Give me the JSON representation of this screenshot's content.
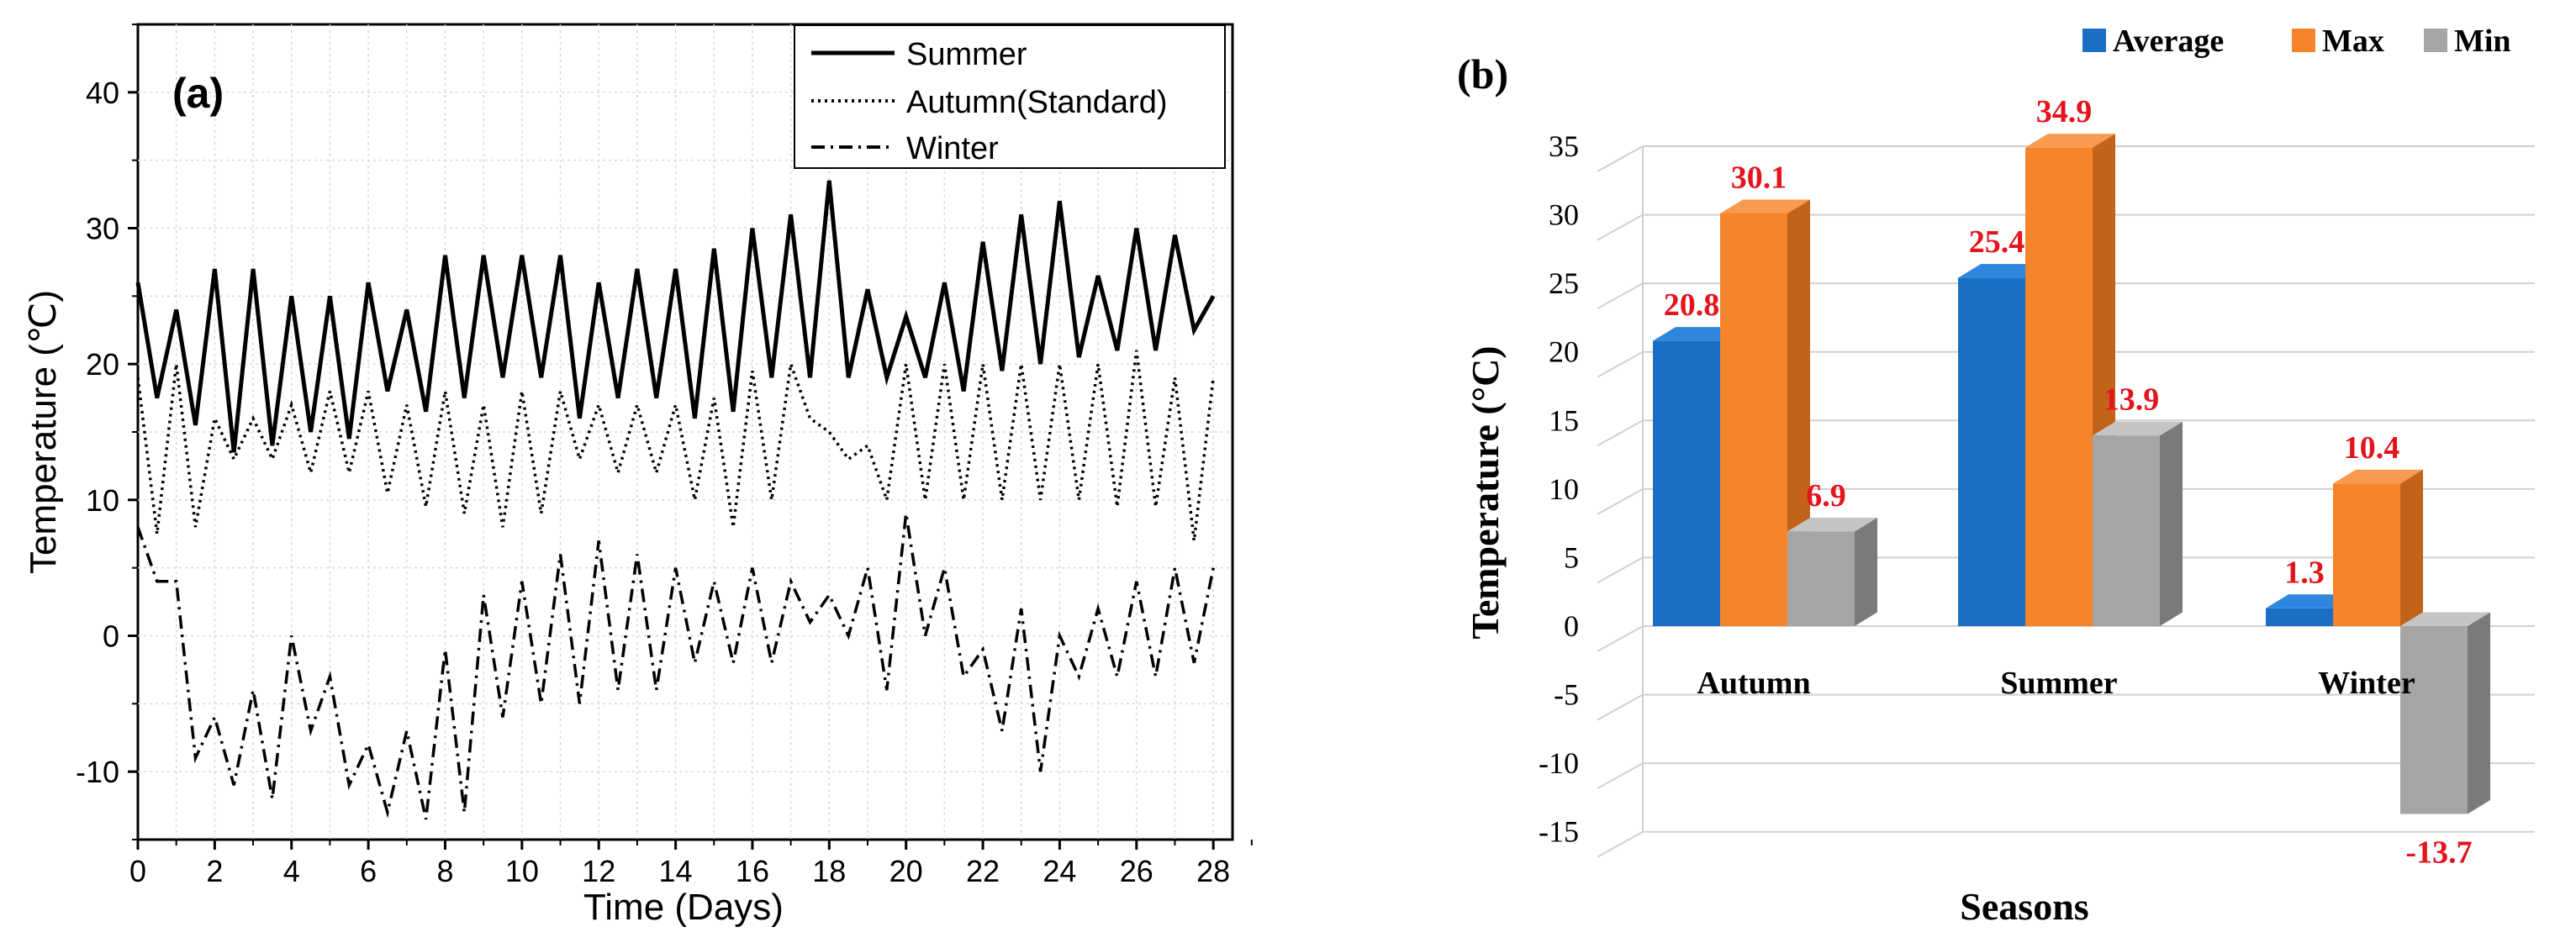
{
  "chart_data": [
    {
      "panel": "(a)",
      "type": "line",
      "xlabel": "Time (Days)",
      "ylabel": "Temperature (℃)",
      "xlim": [
        0,
        28.5
      ],
      "ylim": [
        -15,
        45
      ],
      "xticks": [
        "0",
        "2",
        "4",
        "6",
        "8",
        "10",
        "12",
        "14",
        "16",
        "18",
        "20",
        "22",
        "24",
        "26",
        "28"
      ],
      "yticks": [
        "-10",
        "0",
        "10",
        "20",
        "30",
        "40"
      ],
      "legend_position": "top-right",
      "series": [
        {
          "name": "Summer",
          "style": "solid",
          "x": [
            0,
            0.5,
            1,
            1.5,
            2,
            2.5,
            3,
            3.5,
            4,
            4.5,
            5,
            5.5,
            6,
            6.5,
            7,
            7.5,
            8,
            8.5,
            9,
            9.5,
            10,
            10.5,
            11,
            11.5,
            12,
            12.5,
            13,
            13.5,
            14,
            14.5,
            15,
            15.5,
            16,
            16.5,
            17,
            17.5,
            18,
            18.5,
            19,
            19.5,
            20,
            20.5,
            21,
            21.5,
            22,
            22.5,
            23,
            23.5,
            24,
            24.5,
            25,
            25.5,
            26,
            26.5,
            27,
            27.5,
            28
          ],
          "values": [
            26,
            17.5,
            24,
            15.5,
            27,
            13.5,
            27,
            14,
            25,
            15,
            25,
            14.5,
            26,
            18,
            24,
            16.5,
            28,
            17.5,
            28,
            19,
            28,
            19,
            28,
            16,
            26,
            17.5,
            27,
            17.5,
            27,
            16,
            28.5,
            16.5,
            30,
            19,
            31,
            19,
            33.5,
            19,
            25.5,
            19,
            23.5,
            19,
            26,
            18,
            29,
            19.5,
            31,
            20,
            32,
            20.5,
            26.5,
            21,
            30,
            21,
            29.5,
            22.5,
            25
          ]
        },
        {
          "name": "Autumn(Standard)",
          "style": "dotted",
          "x": [
            0,
            0.5,
            1,
            1.5,
            2,
            2.5,
            3,
            3.5,
            4,
            4.5,
            5,
            5.5,
            6,
            6.5,
            7,
            7.5,
            8,
            8.5,
            9,
            9.5,
            10,
            10.5,
            11,
            11.5,
            12,
            12.5,
            13,
            13.5,
            14,
            14.5,
            15,
            15.5,
            16,
            16.5,
            17,
            17.5,
            18,
            18.5,
            19,
            19.5,
            20,
            20.5,
            21,
            21.5,
            22,
            22.5,
            23,
            23.5,
            24,
            24.5,
            25,
            25.5,
            26,
            26.5,
            27,
            27.5,
            28
          ],
          "values": [
            19,
            7.5,
            20,
            8,
            16,
            13,
            16,
            13,
            17,
            12,
            18,
            12,
            18,
            10.5,
            17,
            9.5,
            18,
            9,
            17,
            8,
            18,
            9,
            18,
            13,
            17,
            12,
            17,
            12,
            17,
            10,
            17.5,
            8,
            19.5,
            10,
            20,
            16,
            15,
            13,
            14,
            10,
            20,
            10,
            20,
            10,
            20,
            10,
            20,
            10,
            20,
            10,
            20,
            9.5,
            21,
            9.5,
            19,
            7,
            19
          ]
        },
        {
          "name": "Winter",
          "style": "dashdot",
          "x": [
            0,
            0.5,
            1,
            1.5,
            2,
            2.5,
            3,
            3.5,
            4,
            4.5,
            5,
            5.5,
            6,
            6.5,
            7,
            7.5,
            8,
            8.5,
            9,
            9.5,
            10,
            10.5,
            11,
            11.5,
            12,
            12.5,
            13,
            13.5,
            14,
            14.5,
            15,
            15.5,
            16,
            16.5,
            17,
            17.5,
            18,
            18.5,
            19,
            19.5,
            20,
            20.5,
            21,
            21.5,
            22,
            22.5,
            23,
            23.5,
            24,
            24.5,
            25,
            25.5,
            26,
            26.5,
            27,
            27.5,
            28
          ],
          "values": [
            8,
            4,
            4,
            -9,
            -6,
            -11,
            -4,
            -12,
            0,
            -7,
            -3,
            -11,
            -8,
            -13,
            -7,
            -13.5,
            -1,
            -13,
            3,
            -6,
            4,
            -5,
            6,
            -5,
            7,
            -4,
            6,
            -4,
            5,
            -2,
            4,
            -2,
            5,
            -2,
            4,
            1,
            3,
            0,
            5,
            -4,
            9,
            0,
            5,
            -3,
            -1,
            -7,
            2,
            -10,
            0,
            -3,
            2,
            -3,
            4,
            -3,
            5,
            -2,
            5
          ]
        }
      ]
    },
    {
      "panel": "(b)",
      "type": "bar",
      "xlabel": "Seasons",
      "ylabel": "Temperature (°C)",
      "categories": [
        "Autumn",
        "Summer",
        "Winter"
      ],
      "ylim": [
        -15,
        35
      ],
      "yticks": [
        "35",
        "30",
        "25",
        "20",
        "15",
        "10",
        "5",
        "0",
        "-5",
        "-10",
        "-15"
      ],
      "legend_position": "top",
      "series": [
        {
          "name": "Average",
          "color": "#1a6fc4",
          "values": [
            20.8,
            25.4,
            1.3
          ],
          "labels": [
            "20.8",
            "25.4",
            "1.3"
          ]
        },
        {
          "name": "Max",
          "color": "#f5842b",
          "values": [
            30.1,
            34.9,
            10.4
          ],
          "labels": [
            "30.1",
            "34.9",
            "10.4"
          ]
        },
        {
          "name": "Min",
          "color": "#a5a5a5",
          "values": [
            6.9,
            13.9,
            -13.7
          ],
          "labels": [
            "6.9",
            "13.9",
            "-13.7"
          ]
        }
      ],
      "label_color": "#e3141b"
    }
  ]
}
